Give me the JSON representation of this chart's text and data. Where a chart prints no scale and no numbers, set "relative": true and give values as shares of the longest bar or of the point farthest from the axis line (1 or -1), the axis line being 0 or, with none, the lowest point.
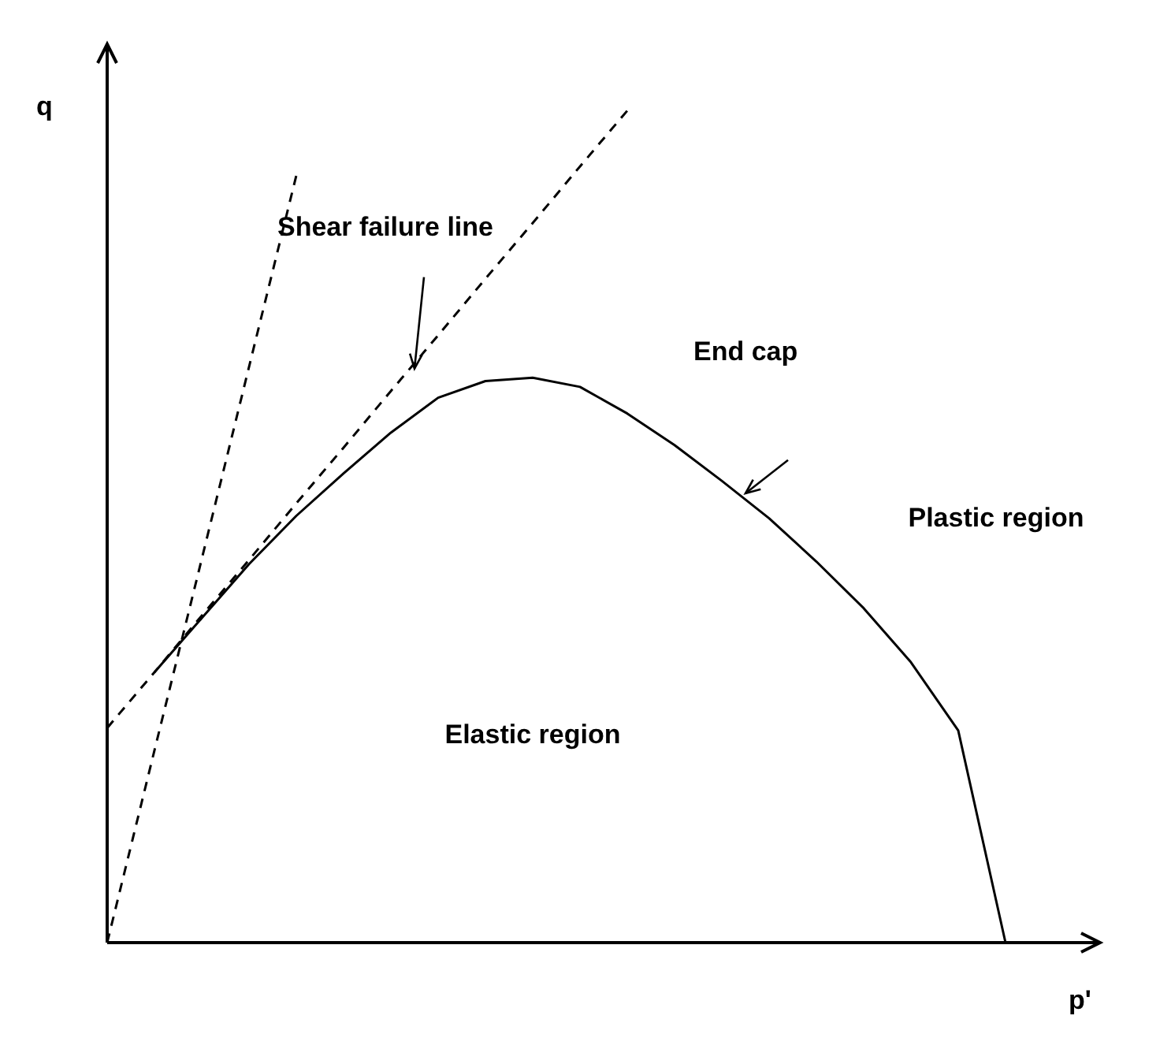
{
  "chart_data": {
    "type": "line",
    "relative": true,
    "xlabel": "p'",
    "ylabel": "q",
    "categories": [
      null,
      null,
      null,
      null,
      null,
      null,
      null,
      null,
      null,
      null,
      null,
      null,
      null,
      null,
      null,
      null,
      null,
      null,
      null,
      null,
      null
    ],
    "series": [
      {
        "color": "#000000",
        "line_style": "solid",
        "values": [
          null,
          0.325,
          0.39,
          0.455,
          0.513,
          0.564,
          0.613,
          0.655,
          0.675,
          0.679,
          0.668,
          0.636,
          0.598,
          0.555,
          0.51,
          0.458,
          0.402,
          0.337,
          0.255,
          0,
          null
        ]
      },
      {
        "color": "#000000",
        "line_style": "dashed",
        "values": [
          0.258,
          0.325,
          0.393,
          0.46,
          0.528,
          0.595,
          0.663,
          0.73,
          0.798,
          0.865,
          0.933,
          1,
          null,
          null,
          null,
          null,
          null,
          null,
          null,
          null,
          null
        ]
      },
      {
        "color": "#000000",
        "line_style": "dashed",
        "values": [
          0,
          0.231,
          0.461,
          0.692,
          0.922,
          null,
          null,
          null,
          null,
          null,
          null,
          null,
          null,
          null,
          null,
          null,
          null,
          null,
          null,
          null,
          null
        ]
      }
    ],
    "annotations": [
      "Shear failure line",
      "End cap",
      "Elastic region",
      "Plastic region"
    ]
  }
}
